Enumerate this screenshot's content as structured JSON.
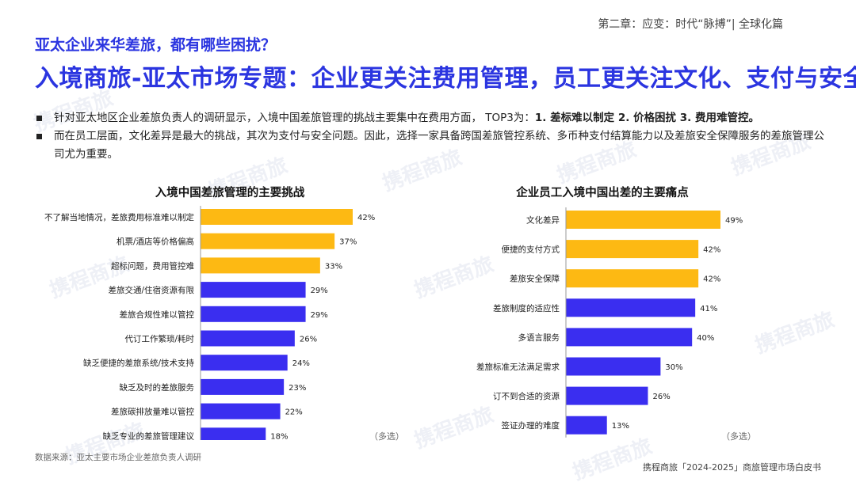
{
  "header": {
    "chapter": "第二章：应变：时代“脉搏”| 全球化篇",
    "subtitle": "亚太企业来华差旅，都有哪些困扰？",
    "title": "入境商旅-亚太市场专题：企业更关注费用管理，员工更关注文化、支付与安全"
  },
  "bullets": [
    {
      "text": "针对亚太地区企业差旅负责人的调研显示，入境中国差旅管理的挑战主要集中在费用方面， TOP3为：",
      "highlight": "1. 差标难以制定 2. 价格困扰 3. 费用难管控。"
    },
    {
      "text": "而在员工层面，文化差异是最大的挑战，其次为支付与安全问题。因此，选择一家具备跨国差旅管控系统、多币种支付结算能力以及差旅安全保障服务的差旅管理公司尤为重要。",
      "highlight": ""
    }
  ],
  "footer": {
    "source": "数据来源：亚太主要市场企业差旅负责人调研",
    "publisher": "携程商旅「2024-2025」商旅管理市场白皮书",
    "multi_note": "（多选）"
  },
  "watermark": "携程商旅",
  "colors": {
    "accent": "#2b35e0",
    "highlight_bar": "#fdb913",
    "bar": "#3a2ef0"
  },
  "chart_data": [
    {
      "type": "bar",
      "orientation": "horizontal",
      "title": "入境中国差旅管理的主要挑战",
      "categories": [
        "不了解当地情况，差旅费用标准难以制定",
        "机票/酒店等价格偏高",
        "超标问题，费用管控难",
        "差旅交通/住宿资源有限",
        "差旅合规性难以管控",
        "代订工作繁琐/耗时",
        "缺乏便捷的差旅系统/技术支持",
        "缺乏及时的差旅服务",
        "差旅碳排放量难以管控",
        "缺乏专业的差旅管理建议"
      ],
      "values": [
        42,
        37,
        33,
        29,
        29,
        26,
        24,
        23,
        22,
        18
      ],
      "value_labels": [
        "42%",
        "37%",
        "33%",
        "29%",
        "29%",
        "26%",
        "24%",
        "23%",
        "22%",
        "18%"
      ],
      "highlight_top": 3,
      "note": "（多选）"
    },
    {
      "type": "bar",
      "orientation": "horizontal",
      "title": "企业员工入境中国出差的主要痛点",
      "categories": [
        "文化差异",
        "便捷的支付方式",
        "差旅安全保障",
        "差旅制度的适应性",
        "多语言服务",
        "差旅标准无法满足需求",
        "订不到合适的资源",
        "签证办理的难度"
      ],
      "values": [
        49,
        42,
        42,
        41,
        40,
        30,
        26,
        13
      ],
      "value_labels": [
        "49%",
        "42%",
        "42%",
        "41%",
        "40%",
        "30%",
        "26%",
        "13%"
      ],
      "highlight_top": 3,
      "note": "（多选）"
    }
  ]
}
